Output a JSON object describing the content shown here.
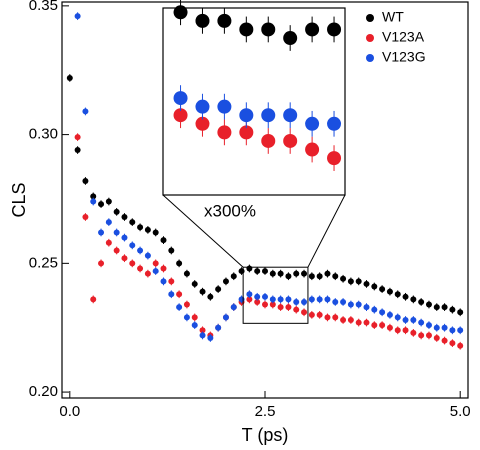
{
  "chart_data": {
    "type": "scatter",
    "xlabel": "T (ps)",
    "ylabel": "CLS",
    "xlim": [
      -0.1,
      5.1
    ],
    "ylim": [
      0.1977,
      0.3515
    ],
    "xticks": [
      {
        "value": 0,
        "label": "0.0"
      },
      2.5,
      {
        "value": 5,
        "label": "5.0"
      }
    ],
    "yticks": [
      {
        "value": 0.2,
        "label": "0.20"
      },
      0.25,
      {
        "value": 0.3,
        "label": "0.30"
      },
      0.35
    ],
    "legend": "upper-right",
    "x": [
      0.0,
      0.1,
      0.2,
      0.3,
      0.4,
      0.5,
      0.6,
      0.7,
      0.8,
      0.9,
      1.0,
      1.1,
      1.2,
      1.3,
      1.4,
      1.5,
      1.6,
      1.7,
      1.8,
      1.9,
      2.0,
      2.1,
      2.2,
      2.3,
      2.4,
      2.5,
      2.6,
      2.7,
      2.8,
      2.9,
      3.0,
      3.1,
      3.2,
      3.3,
      3.4,
      3.5,
      3.6,
      3.7,
      3.8,
      3.9,
      4.0,
      4.1,
      4.2,
      4.3,
      4.4,
      4.5,
      4.6,
      4.7,
      4.8,
      4.9,
      5.0
    ],
    "series": [
      {
        "name": "WT",
        "color": "#000000",
        "values": [
          0.322,
          0.294,
          0.282,
          0.276,
          0.273,
          0.274,
          0.27,
          0.268,
          0.266,
          0.264,
          0.263,
          0.262,
          0.259,
          0.255,
          0.25,
          0.246,
          0.242,
          0.239,
          0.237,
          0.24,
          0.243,
          0.245,
          0.247,
          0.248,
          0.247,
          0.247,
          0.246,
          0.246,
          0.245,
          0.246,
          0.246,
          0.245,
          0.245,
          0.246,
          0.245,
          0.244,
          0.243,
          0.243,
          0.242,
          0.241,
          0.24,
          0.239,
          0.238,
          0.237,
          0.236,
          0.235,
          0.234,
          0.233,
          0.233,
          0.232,
          0.231
        ],
        "errors": [
          0.0015,
          0.0015,
          0.0015,
          0.0015,
          0.0015,
          0.0015,
          0.0015,
          0.0015,
          0.0015,
          0.0015,
          0.0015,
          0.0015,
          0.0015,
          0.0015,
          0.0015,
          0.0015,
          0.0015,
          0.0015,
          0.0015,
          0.0015,
          0.0015,
          0.0015,
          0.0015,
          0.0015,
          0.0015,
          0.0015,
          0.0015,
          0.0015,
          0.0015,
          0.0015,
          0.0015,
          0.0015,
          0.0015,
          0.0015,
          0.0015,
          0.0015,
          0.0015,
          0.0015,
          0.0015,
          0.0015,
          0.0015,
          0.0015,
          0.0015,
          0.0015,
          0.0015,
          0.0015,
          0.0015,
          0.0015,
          0.0015,
          0.0015,
          0.0015
        ]
      },
      {
        "name": "V123A",
        "color": "#e8202a",
        "values": [
          null,
          0.299,
          0.268,
          0.236,
          0.25,
          0.258,
          0.255,
          0.252,
          0.25,
          0.248,
          0.246,
          0.25,
          0.248,
          0.243,
          0.238,
          0.234,
          0.229,
          0.224,
          0.222,
          0.225,
          0.229,
          0.233,
          0.235,
          0.236,
          0.235,
          0.234,
          0.234,
          0.233,
          0.233,
          0.232,
          0.231,
          0.23,
          0.23,
          0.229,
          0.229,
          0.228,
          0.228,
          0.227,
          0.227,
          0.226,
          0.226,
          0.225,
          0.224,
          0.224,
          0.223,
          0.222,
          0.222,
          0.221,
          0.22,
          0.219,
          0.218
        ],
        "errors": [
          null,
          0.0015,
          0.0015,
          0.0015,
          0.0015,
          0.0015,
          0.0015,
          0.0015,
          0.0015,
          0.0015,
          0.0015,
          0.0015,
          0.0015,
          0.0015,
          0.0015,
          0.0015,
          0.0015,
          0.0015,
          0.0015,
          0.0015,
          0.0015,
          0.0015,
          0.0015,
          0.0015,
          0.0015,
          0.0015,
          0.0015,
          0.0015,
          0.0015,
          0.0015,
          0.0015,
          0.0015,
          0.0015,
          0.0015,
          0.0015,
          0.0015,
          0.0015,
          0.0015,
          0.0015,
          0.0015,
          0.0015,
          0.0015,
          0.0015,
          0.0015,
          0.0015,
          0.0015,
          0.0015,
          0.0015,
          0.0015,
          0.0015,
          0.0015
        ]
      },
      {
        "name": "V123G",
        "color": "#1a4fe0",
        "values": [
          null,
          0.346,
          0.309,
          0.274,
          0.262,
          0.266,
          0.262,
          0.26,
          0.257,
          0.255,
          0.253,
          0.247,
          0.243,
          0.238,
          0.233,
          0.229,
          0.226,
          0.222,
          0.221,
          0.225,
          0.229,
          0.233,
          0.236,
          0.238,
          0.237,
          0.237,
          0.236,
          0.236,
          0.236,
          0.235,
          0.235,
          0.236,
          0.236,
          0.236,
          0.235,
          0.235,
          0.234,
          0.234,
          0.233,
          0.232,
          0.231,
          0.23,
          0.229,
          0.228,
          0.228,
          0.227,
          0.226,
          0.225,
          0.225,
          0.224,
          0.224
        ],
        "errors": [
          null,
          0.0015,
          0.0015,
          0.0015,
          0.0015,
          0.0015,
          0.0015,
          0.0015,
          0.0015,
          0.0015,
          0.0015,
          0.0015,
          0.0015,
          0.0015,
          0.0015,
          0.0015,
          0.0015,
          0.0015,
          0.0015,
          0.0015,
          0.0015,
          0.0015,
          0.0015,
          0.0015,
          0.0015,
          0.0015,
          0.0015,
          0.0015,
          0.0015,
          0.0015,
          0.0015,
          0.0015,
          0.0015,
          0.0015,
          0.0015,
          0.0015,
          0.0015,
          0.0015,
          0.0015,
          0.0015,
          0.0015,
          0.0015,
          0.0015,
          0.0015,
          0.0015,
          0.0015,
          0.0015,
          0.0015,
          0.0015,
          0.0015,
          0.0015
        ]
      }
    ],
    "inset": {
      "label": "x300%",
      "xlim": [
        2.22,
        3.05
      ],
      "ylim": [
        0.2267,
        0.2485
      ]
    }
  }
}
